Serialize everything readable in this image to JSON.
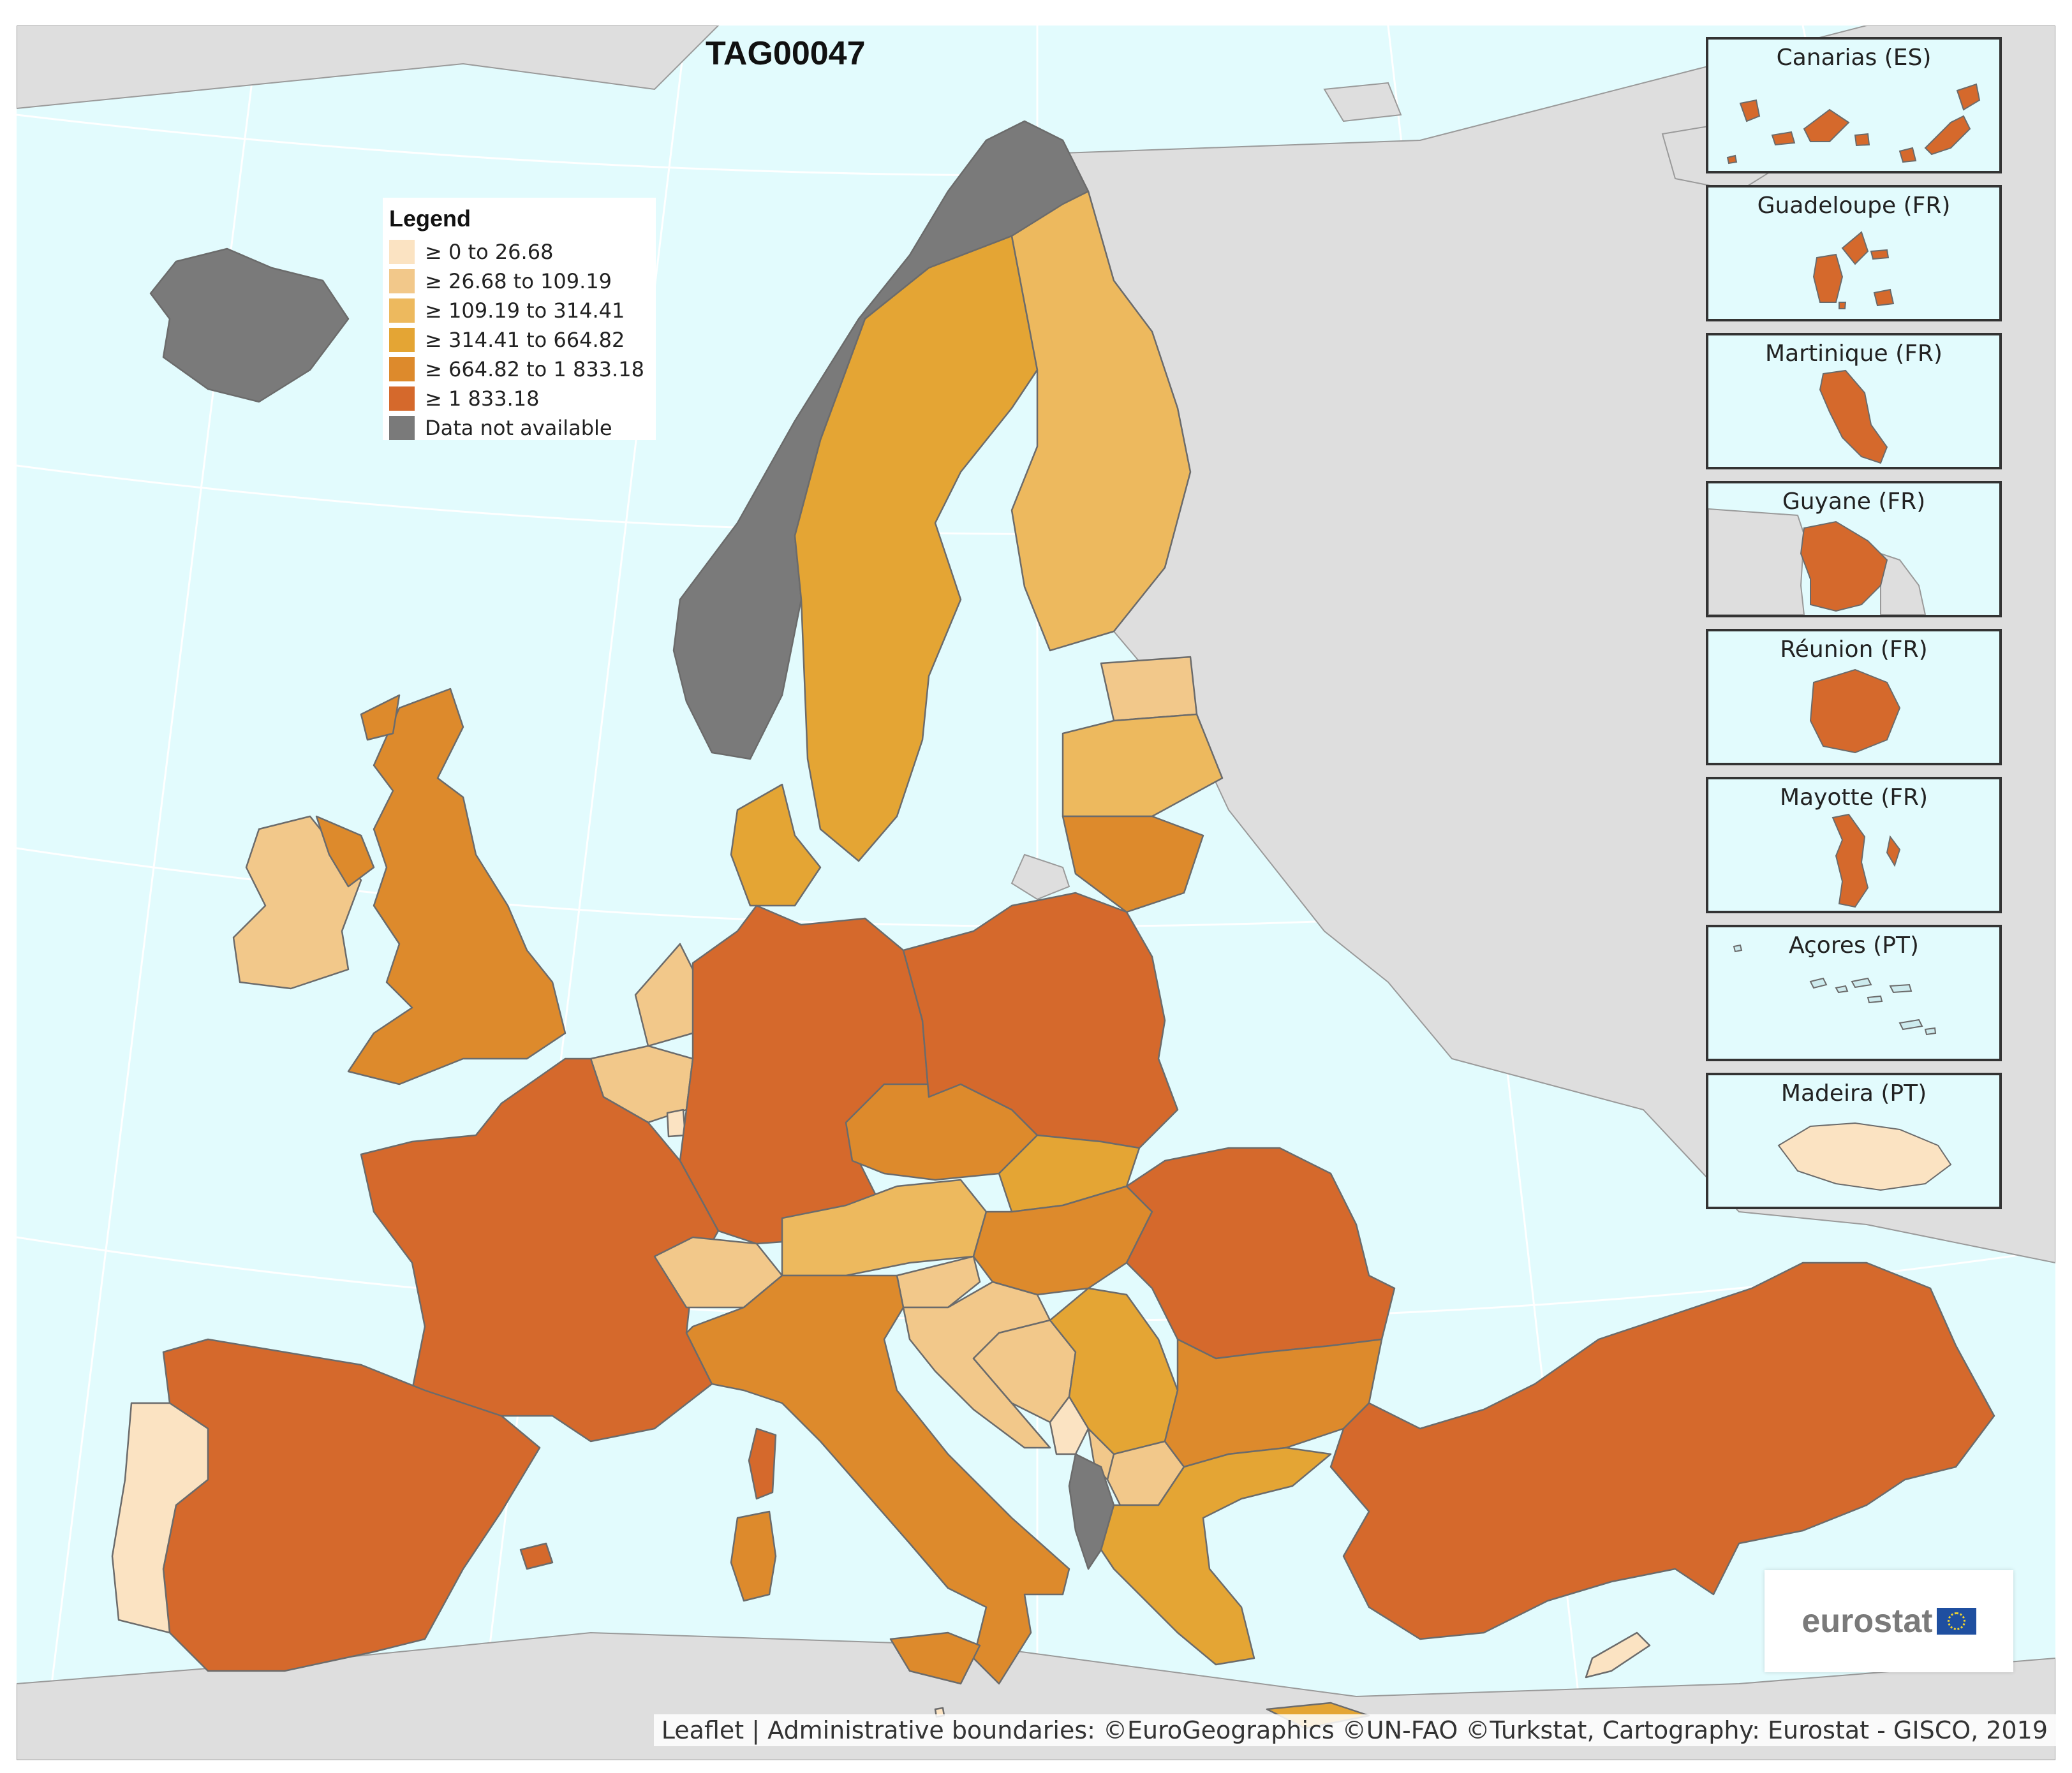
{
  "map": {
    "title": "TAG00047",
    "colors": {
      "sea": "#e2fbfd",
      "land_other": "#dedede",
      "border": "#6b6b6b",
      "c0": "#fbe3c2",
      "c1": "#f2c88a",
      "c2": "#edb95e",
      "c3": "#e4a534",
      "c4": "#dd8a2c",
      "c5": "#d5692c",
      "na": "#7a7a7a"
    }
  },
  "legend": {
    "title": "Legend",
    "items": [
      {
        "label": "≥ 0 to 26.68",
        "color": "#fbe3c2"
      },
      {
        "label": "≥ 26.68 to 109.19",
        "color": "#f2c88a"
      },
      {
        "label": "≥ 109.19 to 314.41",
        "color": "#edb95e"
      },
      {
        "label": "≥ 314.41 to 664.82",
        "color": "#e4a534"
      },
      {
        "label": "≥ 664.82 to 1 833.18",
        "color": "#dd8a2c"
      },
      {
        "label": "≥ 1 833.18",
        "color": "#d5692c"
      },
      {
        "label": "Data not available",
        "color": "#7a7a7a"
      }
    ]
  },
  "insets": [
    {
      "label": "Canarias (ES)"
    },
    {
      "label": "Guadeloupe (FR)"
    },
    {
      "label": "Martinique (FR)"
    },
    {
      "label": "Guyane (FR)"
    },
    {
      "label": "Réunion (FR)"
    },
    {
      "label": "Mayotte (FR)"
    },
    {
      "label": "Açores (PT)"
    },
    {
      "label": "Madeira (PT)"
    }
  ],
  "logo": {
    "text": "eurostat",
    "flag": "eu-flag-icon"
  },
  "attribution": "Leaflet | Administrative boundaries: ©EuroGeographics ©UN-FAO ©Turkstat, Cartography: Eurostat - GISCO, 2019"
}
